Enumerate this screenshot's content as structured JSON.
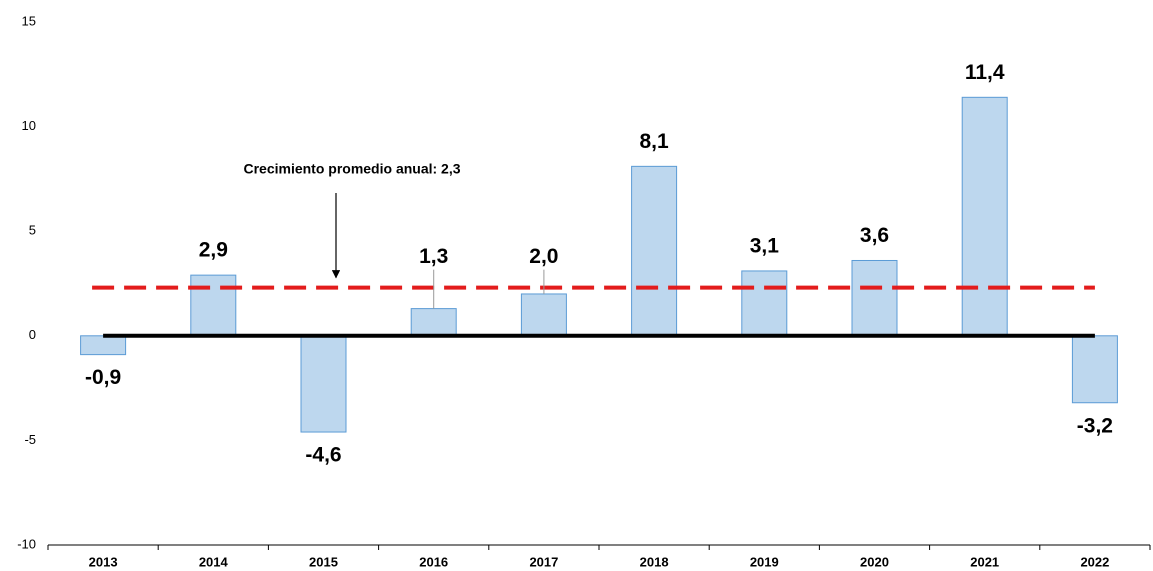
{
  "chart_data": {
    "type": "bar",
    "categories": [
      "2013",
      "2014",
      "2015",
      "2016",
      "2017",
      "2018",
      "2019",
      "2020",
      "2021",
      "2022"
    ],
    "values": [
      -0.9,
      2.9,
      -4.6,
      1.3,
      2.0,
      8.1,
      3.1,
      3.6,
      11.4,
      -3.2
    ],
    "value_labels": [
      "-0,9",
      "2,9",
      "-4,6",
      "1,3",
      "2,0",
      "8,1",
      "3,1",
      "3,6",
      "11,4",
      "-3,2"
    ],
    "color": "#bdd7ee",
    "edge_color": "#5b9bd5",
    "ylim": [
      -10,
      15
    ],
    "yticks": [
      -10,
      -5,
      0,
      5,
      10,
      15
    ],
    "grid": false,
    "reference_line": {
      "value": 2.3,
      "label": "Crecimiento promedio anual: 2,3",
      "color": "#e31c1c"
    }
  }
}
